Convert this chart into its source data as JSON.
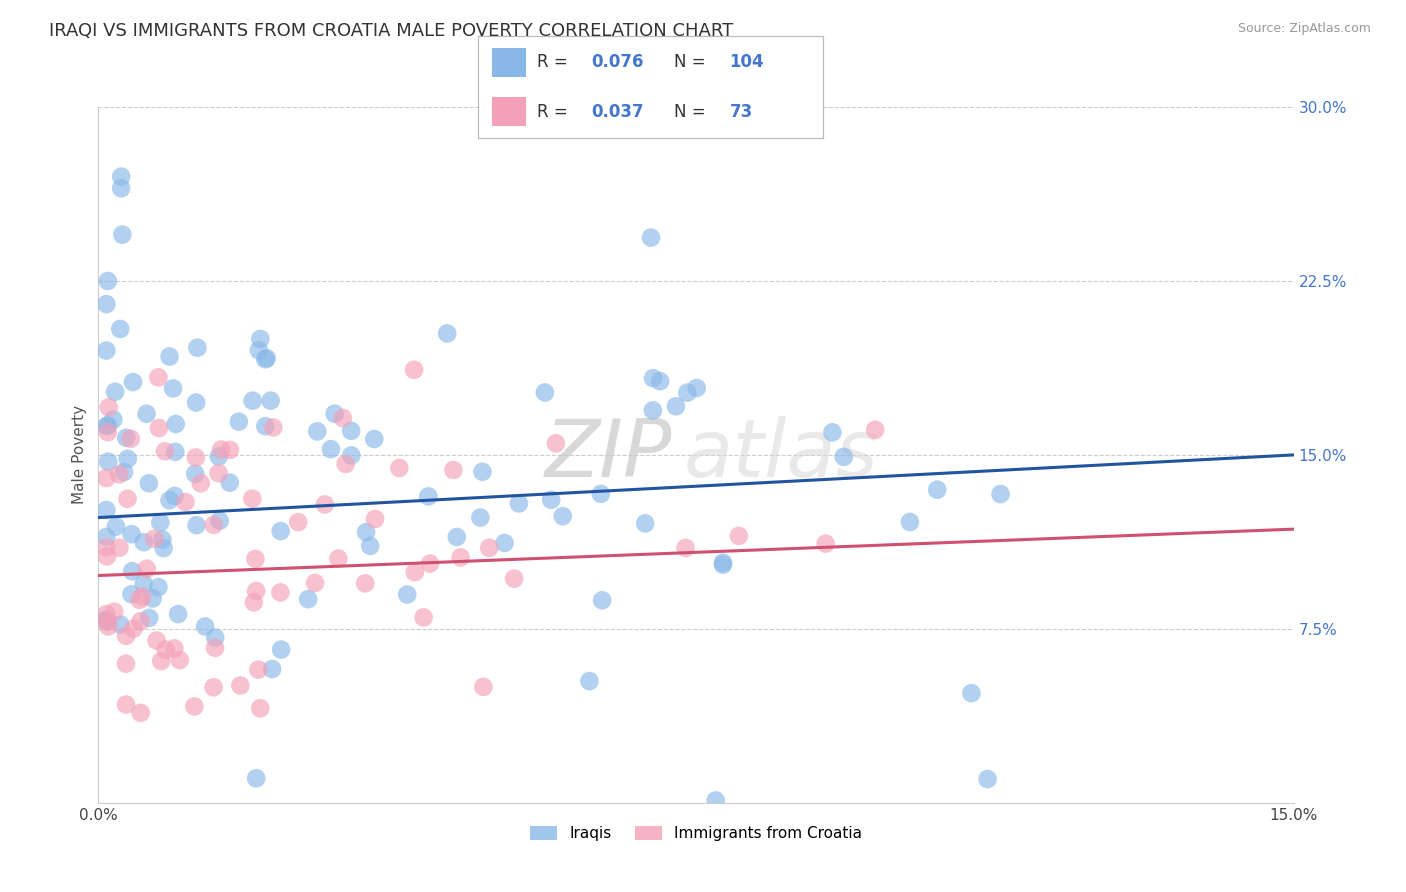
{
  "title": "IRAQI VS IMMIGRANTS FROM CROATIA MALE POVERTY CORRELATION CHART",
  "source": "Source: ZipAtlas.com",
  "ylabel": "Male Poverty",
  "xlim": [
    0.0,
    0.15
  ],
  "ylim": [
    0.0,
    0.3
  ],
  "yticks_right": [
    0.0,
    0.075,
    0.15,
    0.225,
    0.3
  ],
  "yticklabels_right": [
    "",
    "7.5%",
    "15.0%",
    "22.5%",
    "30.0%"
  ],
  "series1_name": "Iraqis",
  "series1_color": "#89b8e8",
  "series1_R": 0.076,
  "series1_N": 104,
  "series2_name": "Immigrants from Croatia",
  "series2_color": "#f4a0b8",
  "series2_R": 0.037,
  "series2_N": 73,
  "line1_color": "#2255a0",
  "line2_color": "#d05070",
  "line1_start_y": 0.123,
  "line1_end_y": 0.15,
  "line2_start_y": 0.098,
  "line2_end_y": 0.118,
  "background_color": "#ffffff",
  "grid_color": "#cccccc",
  "title_fontsize": 13,
  "axis_label_fontsize": 11,
  "right_tick_color": "#4477cc"
}
